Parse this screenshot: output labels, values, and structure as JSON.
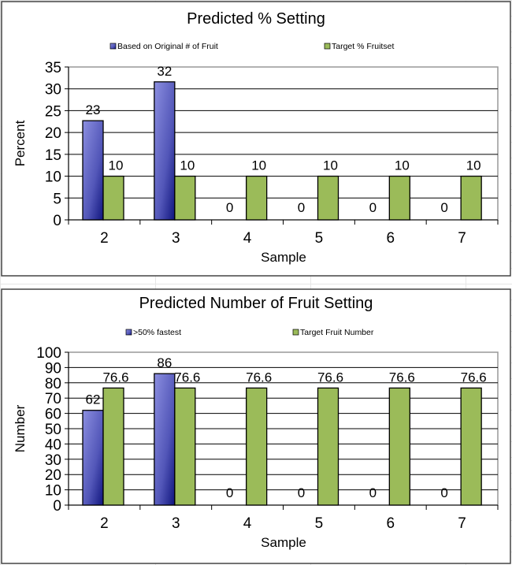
{
  "chart_data": [
    {
      "type": "bar",
      "title": "Predicted % Setting",
      "xlabel": "Sample",
      "ylabel": "Percent",
      "categories": [
        "2",
        "3",
        "4",
        "5",
        "6",
        "7"
      ],
      "ylim": [
        0,
        35
      ],
      "yticks": [
        0,
        5,
        10,
        15,
        20,
        25,
        30,
        35
      ],
      "grid": true,
      "legend_placement": "top",
      "series": [
        {
          "name": "Based on Original # of Fruit",
          "values": [
            22.7,
            31.6,
            0,
            0,
            0,
            0
          ],
          "labels": [
            "23",
            "32",
            "0",
            "0",
            "0",
            "0"
          ],
          "color": "#5a5ec0"
        },
        {
          "name": "Target % Fruitset",
          "values": [
            10,
            10,
            10,
            10,
            10,
            10
          ],
          "labels": [
            "10",
            "10",
            "10",
            "10",
            "10",
            "10"
          ],
          "color": "#9bbb59"
        }
      ]
    },
    {
      "type": "bar",
      "title": "Predicted Number of Fruit Setting",
      "xlabel": "Sample",
      "ylabel": "Number",
      "categories": [
        "2",
        "3",
        "4",
        "5",
        "6",
        "7"
      ],
      "ylim": [
        0,
        100
      ],
      "yticks": [
        0,
        10,
        20,
        30,
        40,
        50,
        60,
        70,
        80,
        90,
        100
      ],
      "grid": true,
      "legend_placement": "top",
      "series": [
        {
          "name": ">50% fastest",
          "values": [
            62,
            86,
            0,
            0,
            0,
            0
          ],
          "labels": [
            "62",
            "86",
            "0",
            "0",
            "0",
            "0"
          ],
          "color": "#5a5ec0"
        },
        {
          "name": "Target Fruit Number",
          "values": [
            76.6,
            76.6,
            76.6,
            76.6,
            76.6,
            76.6
          ],
          "labels": [
            "76.6",
            "76.6",
            "76.6",
            "76.6",
            "76.6",
            "76.6"
          ],
          "color": "#9bbb59"
        }
      ]
    }
  ]
}
